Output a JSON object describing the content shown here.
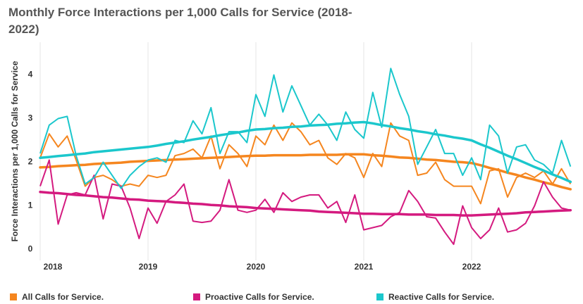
{
  "chart_data": {
    "type": "line",
    "title": "Monthly Force Interactions per 1,000 Calls for Service (2018-2022)",
    "y_label": "Force Interactions per 1,000 Calls for Service",
    "categories": [
      "2018",
      null,
      null,
      null,
      null,
      null,
      null,
      null,
      null,
      null,
      null,
      null,
      "2019",
      null,
      null,
      null,
      null,
      null,
      null,
      null,
      null,
      null,
      null,
      null,
      "2020",
      null,
      null,
      null,
      null,
      null,
      null,
      null,
      null,
      null,
      null,
      null,
      "2021",
      null,
      null,
      null,
      null,
      null,
      null,
      null,
      null,
      null,
      null,
      null,
      "2022",
      null,
      null,
      null,
      null,
      null,
      null,
      null,
      null,
      null,
      null,
      null
    ],
    "ylim": [
      -0.25,
      4.75
    ],
    "yticks": [
      0,
      1,
      2,
      3,
      4
    ],
    "grid": "x",
    "series": [
      {
        "name": "All Calls for Service.",
        "color": "#f5861f",
        "values": [
          2.1,
          2.65,
          2.35,
          2.6,
          2.05,
          1.45,
          1.65,
          1.7,
          1.6,
          1.45,
          1.5,
          1.45,
          1.7,
          1.65,
          1.7,
          2.15,
          2.2,
          2.3,
          2.1,
          2.6,
          1.85,
          2.4,
          2.2,
          1.9,
          2.6,
          2.4,
          2.85,
          2.5,
          2.9,
          2.7,
          2.4,
          2.5,
          2.1,
          1.95,
          2.2,
          2.1,
          1.65,
          2.2,
          1.9,
          2.9,
          2.6,
          2.5,
          1.7,
          1.75,
          2.0,
          1.6,
          1.45,
          1.45,
          1.45,
          1.05,
          1.8,
          1.85,
          1.2,
          1.65,
          1.75,
          1.65,
          1.8,
          1.5,
          1.85,
          1.5
        ],
        "trend": [
          1.88,
          1.89,
          1.91,
          1.92,
          1.93,
          1.94,
          1.96,
          1.97,
          1.98,
          1.99,
          2.01,
          2.02,
          2.03,
          2.04,
          2.05,
          2.06,
          2.07,
          2.08,
          2.09,
          2.1,
          2.11,
          2.12,
          2.13,
          2.14,
          2.15,
          2.15,
          2.16,
          2.16,
          2.16,
          2.16,
          2.17,
          2.17,
          2.17,
          2.17,
          2.18,
          2.18,
          2.18,
          2.16,
          2.15,
          2.13,
          2.11,
          2.1,
          2.08,
          2.06,
          2.05,
          2.03,
          2.01,
          2.0,
          1.98,
          1.93,
          1.87,
          1.82,
          1.76,
          1.71,
          1.65,
          1.6,
          1.54,
          1.49,
          1.43,
          1.38
        ]
      },
      {
        "name": "Proactive Calls for Service.",
        "color": "#d41a7f",
        "values": [
          1.45,
          2.05,
          0.58,
          1.25,
          1.3,
          1.25,
          1.7,
          0.7,
          1.5,
          1.45,
          0.95,
          0.25,
          0.95,
          0.6,
          1.1,
          1.25,
          1.5,
          0.65,
          0.62,
          0.65,
          0.9,
          1.6,
          0.9,
          0.85,
          0.9,
          1.15,
          0.85,
          1.3,
          1.1,
          1.2,
          1.25,
          1.25,
          0.95,
          1.1,
          0.62,
          1.25,
          0.45,
          0.5,
          0.55,
          0.75,
          0.85,
          1.35,
          1.1,
          0.75,
          0.72,
          0.4,
          0.12,
          1.0,
          0.5,
          0.25,
          0.45,
          0.95,
          0.4,
          0.45,
          0.6,
          1.0,
          1.55,
          1.2,
          0.95,
          0.9
        ],
        "trend": [
          1.32,
          1.3,
          1.29,
          1.27,
          1.25,
          1.24,
          1.22,
          1.2,
          1.19,
          1.17,
          1.15,
          1.14,
          1.12,
          1.11,
          1.1,
          1.08,
          1.07,
          1.05,
          1.04,
          1.02,
          1.01,
          0.99,
          0.98,
          0.97,
          0.95,
          0.94,
          0.93,
          0.92,
          0.91,
          0.9,
          0.89,
          0.87,
          0.86,
          0.85,
          0.84,
          0.83,
          0.82,
          0.82,
          0.81,
          0.81,
          0.81,
          0.8,
          0.8,
          0.8,
          0.79,
          0.79,
          0.79,
          0.78,
          0.78,
          0.79,
          0.8,
          0.81,
          0.82,
          0.83,
          0.85,
          0.86,
          0.87,
          0.88,
          0.89,
          0.9
        ]
      },
      {
        "name": "Reactive Calls for Service.",
        "color": "#1bc7cc",
        "values": [
          2.2,
          2.85,
          3.0,
          3.05,
          2.15,
          1.5,
          1.65,
          2.0,
          1.7,
          1.4,
          1.7,
          1.9,
          2.05,
          2.1,
          2.0,
          2.5,
          2.45,
          2.95,
          2.65,
          3.25,
          2.2,
          2.7,
          2.7,
          2.45,
          3.55,
          3.05,
          4.0,
          3.15,
          3.75,
          3.3,
          2.85,
          3.1,
          2.85,
          2.5,
          3.15,
          2.75,
          2.55,
          3.6,
          2.8,
          4.15,
          3.55,
          3.05,
          1.95,
          2.35,
          2.75,
          2.2,
          2.2,
          1.7,
          2.1,
          1.6,
          2.85,
          2.6,
          1.75,
          2.35,
          2.4,
          2.05,
          1.95,
          1.75,
          2.5,
          1.9
        ],
        "trend": [
          2.1,
          2.12,
          2.14,
          2.16,
          2.18,
          2.2,
          2.23,
          2.25,
          2.27,
          2.29,
          2.31,
          2.33,
          2.35,
          2.38,
          2.42,
          2.45,
          2.48,
          2.52,
          2.55,
          2.58,
          2.62,
          2.65,
          2.68,
          2.72,
          2.75,
          2.76,
          2.78,
          2.79,
          2.81,
          2.82,
          2.84,
          2.85,
          2.86,
          2.88,
          2.89,
          2.91,
          2.92,
          2.89,
          2.85,
          2.82,
          2.78,
          2.75,
          2.71,
          2.68,
          2.64,
          2.61,
          2.57,
          2.54,
          2.5,
          2.41,
          2.33,
          2.24,
          2.15,
          2.07,
          1.98,
          1.89,
          1.81,
          1.72,
          1.64,
          1.55
        ]
      }
    ]
  }
}
